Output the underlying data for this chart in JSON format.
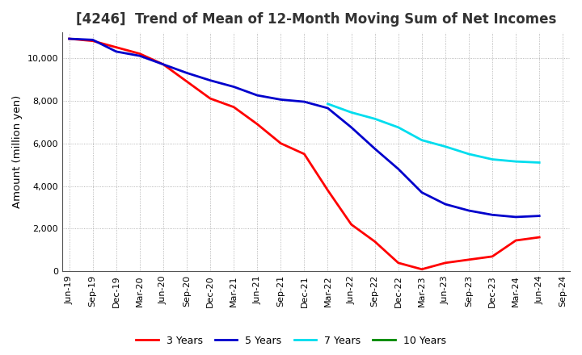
{
  "title": "[4246]  Trend of Mean of 12-Month Moving Sum of Net Incomes",
  "ylabel": "Amount (million yen)",
  "background_color": "#ffffff",
  "grid_color": "#999999",
  "x_labels": [
    "Jun-19",
    "Sep-19",
    "Dec-19",
    "Mar-20",
    "Jun-20",
    "Sep-20",
    "Dec-20",
    "Mar-21",
    "Jun-21",
    "Sep-21",
    "Dec-21",
    "Mar-22",
    "Jun-22",
    "Sep-22",
    "Dec-22",
    "Mar-23",
    "Jun-23",
    "Sep-23",
    "Dec-23",
    "Mar-24",
    "Jun-24",
    "Sep-24"
  ],
  "series": [
    {
      "name": "3 Years",
      "color": "#ff0000",
      "data_x": [
        0,
        1,
        2,
        3,
        4,
        5,
        6,
        7,
        8,
        9,
        10,
        11,
        12,
        13,
        14,
        15,
        16,
        17,
        18,
        19,
        20
      ],
      "data_y": [
        10900,
        10800,
        10500,
        10200,
        9700,
        8900,
        8100,
        7700,
        6900,
        6000,
        5500,
        3800,
        2200,
        1400,
        400,
        100,
        400,
        550,
        700,
        1450,
        1600
      ]
    },
    {
      "name": "5 Years",
      "color": "#0000cc",
      "data_x": [
        0,
        1,
        2,
        3,
        4,
        5,
        6,
        7,
        8,
        9,
        10,
        11,
        12,
        13,
        14,
        15,
        16,
        17,
        18,
        19,
        20
      ],
      "data_y": [
        10900,
        10850,
        10300,
        10100,
        9700,
        9300,
        8950,
        8650,
        8250,
        8050,
        7950,
        7650,
        6750,
        5750,
        4800,
        3700,
        3150,
        2850,
        2650,
        2550,
        2600
      ]
    },
    {
      "name": "7 Years",
      "color": "#00ddee",
      "data_x": [
        11,
        12,
        13,
        14,
        15,
        16,
        17,
        18,
        19,
        20
      ],
      "data_y": [
        7850,
        7450,
        7150,
        6750,
        6150,
        5850,
        5500,
        5250,
        5150,
        5100
      ]
    },
    {
      "name": "10 Years",
      "color": "#008800",
      "data_x": [],
      "data_y": []
    }
  ],
  "ylim": [
    0,
    11200
  ],
  "yticks": [
    0,
    2000,
    4000,
    6000,
    8000,
    10000
  ],
  "title_fontsize": 12,
  "axis_label_fontsize": 9.5,
  "tick_fontsize": 8,
  "legend_fontsize": 9,
  "line_width": 2.0
}
